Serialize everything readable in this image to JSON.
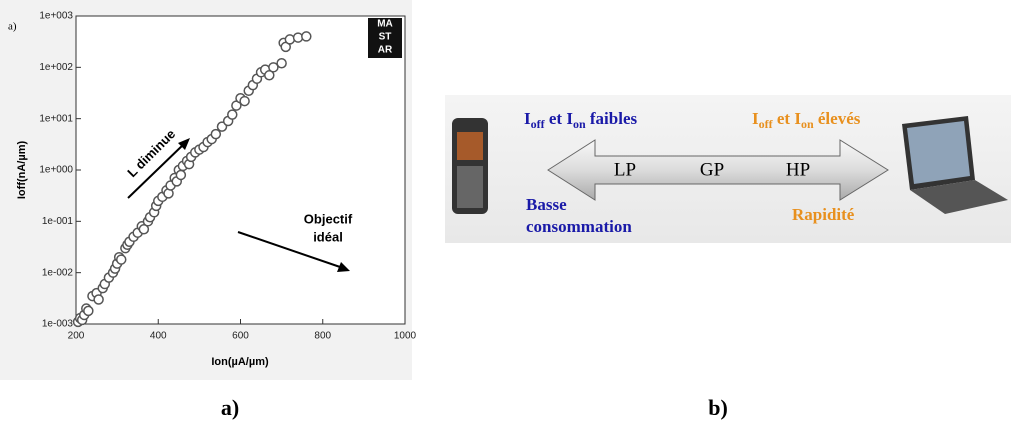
{
  "chart_data": {
    "type": "scatter",
    "panel_label": "a)",
    "logo": [
      "MA",
      "ST",
      "AR"
    ],
    "xlabel": "Ion(µA/µm)",
    "ylabel": "Ioff(nA/µm)",
    "annotations": [
      "L diminue",
      "Objectif",
      "idéal"
    ],
    "log_y": true,
    "marker_color": "#555555",
    "xlim": [
      200,
      1000
    ],
    "xticks": [
      200,
      400,
      600,
      800,
      1000
    ],
    "ylim": [
      0.001,
      1000
    ],
    "yticks": [
      {
        "value": 0.001,
        "label": "1e-003"
      },
      {
        "value": 0.01,
        "label": "1e-002"
      },
      {
        "value": 0.1,
        "label": "1e-001"
      },
      {
        "value": 1,
        "label": "1e+000"
      },
      {
        "value": 10,
        "label": "1e+001"
      },
      {
        "value": 100,
        "label": "1e+002"
      },
      {
        "value": 1000,
        "label": "1e+003"
      }
    ],
    "x": [
      205,
      210,
      215,
      220,
      225,
      230,
      240,
      250,
      255,
      265,
      270,
      280,
      290,
      295,
      300,
      305,
      310,
      320,
      325,
      330,
      340,
      350,
      360,
      365,
      375,
      380,
      390,
      395,
      400,
      410,
      420,
      425,
      430,
      440,
      445,
      450,
      455,
      460,
      470,
      475,
      480,
      490,
      500,
      510,
      520,
      530,
      540,
      555,
      570,
      580,
      590,
      600,
      610,
      620,
      630,
      640,
      650,
      660,
      670,
      680,
      700,
      705,
      710,
      720,
      740,
      760
    ],
    "values": [
      0.0011,
      0.0013,
      0.0012,
      0.0015,
      0.002,
      0.0018,
      0.0035,
      0.004,
      0.003,
      0.005,
      0.006,
      0.008,
      0.01,
      0.012,
      0.015,
      0.02,
      0.018,
      0.03,
      0.035,
      0.04,
      0.05,
      0.06,
      0.08,
      0.07,
      0.1,
      0.12,
      0.15,
      0.2,
      0.25,
      0.3,
      0.4,
      0.35,
      0.5,
      0.7,
      0.6,
      1.0,
      0.8,
      1.2,
      1.5,
      1.3,
      1.8,
      2.2,
      2.5,
      2.8,
      3.5,
      4,
      5,
      7,
      9,
      12,
      18,
      25,
      22,
      35,
      45,
      60,
      80,
      90,
      70,
      100,
      120,
      300,
      250,
      350,
      380,
      400
    ]
  },
  "diagram": {
    "caption_a": "a)",
    "caption_b": "b)",
    "left_top": {
      "i1": "I",
      "s1": "off",
      "mid": " et I",
      "s2": "on",
      "end": " faibles"
    },
    "right_top": {
      "i1": "I",
      "s1": "off",
      "mid": " et I",
      "s2": "on",
      "end": " élevés"
    },
    "left_bottom": [
      "Basse",
      "consommation"
    ],
    "right_bottom": "Rapidité",
    "arrow_labels": [
      "LP",
      "GP",
      "HP"
    ]
  }
}
